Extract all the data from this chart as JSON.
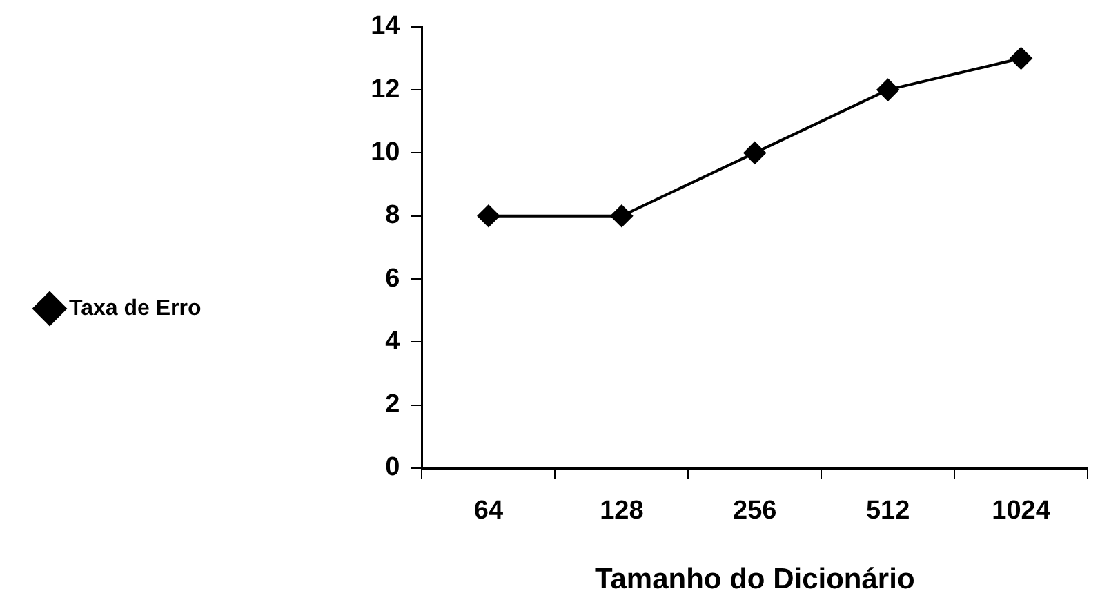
{
  "chart_data": {
    "type": "line",
    "xlabel": "Tamanho do Dicionário",
    "categories": [
      "64",
      "128",
      "256",
      "512",
      "1024"
    ],
    "series": [
      {
        "name": "Taxa de Erro",
        "color": "#000000",
        "values": [
          8,
          8,
          10,
          12,
          13
        ]
      }
    ],
    "ylim": [
      0,
      14
    ],
    "yticks": [
      0,
      2,
      4,
      6,
      8,
      10,
      12,
      14
    ],
    "grid": false,
    "legend": "left",
    "marker": "diamond",
    "line_style": "solid"
  }
}
